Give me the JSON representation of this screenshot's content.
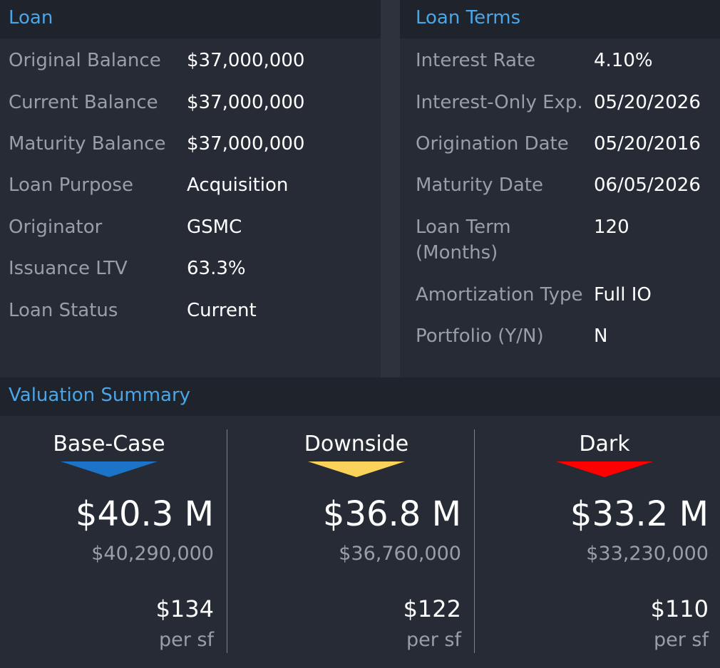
{
  "loan": {
    "title": "Loan",
    "rows": [
      {
        "label": "Original Balance",
        "value": "$37,000,000"
      },
      {
        "label": "Current Balance",
        "value": "$37,000,000"
      },
      {
        "label": "Maturity Balance",
        "value": "$37,000,000"
      },
      {
        "label": "Loan Purpose",
        "value": "Acquisition"
      },
      {
        "label": "Originator",
        "value": "GSMC"
      },
      {
        "label": "Issuance LTV",
        "value": "63.3%"
      },
      {
        "label": "Loan Status",
        "value": "Current"
      }
    ]
  },
  "terms": {
    "title": "Loan Terms",
    "rows": [
      {
        "label": "Interest Rate",
        "value": "4.10%"
      },
      {
        "label": "Interest-Only Exp.",
        "value": "05/20/2026"
      },
      {
        "label": "Origination Date",
        "value": "05/20/2016"
      },
      {
        "label": "Maturity Date",
        "value": "06/05/2026"
      },
      {
        "label": "Loan Term",
        "label2": "(Months)",
        "value": "120"
      },
      {
        "label": "Amortization Type",
        "value": "Full IO"
      },
      {
        "label": "Portfolio (Y/N)",
        "value": "N"
      }
    ]
  },
  "valuation": {
    "title": "Valuation Summary",
    "scenarios": [
      {
        "name": "Base-Case",
        "color": "#1c74c8",
        "value_short": "$40.3 M",
        "value_exact": "$40,290,000",
        "per_sf": "$134",
        "per_sf_unit": "per sf"
      },
      {
        "name": "Downside",
        "color": "#fcd35a",
        "value_short": "$36.8 M",
        "value_exact": "$36,760,000",
        "per_sf": "$122",
        "per_sf_unit": "per sf"
      },
      {
        "name": "Dark",
        "color": "#ff0000",
        "value_short": "$33.2 M",
        "value_exact": "$33,230,000",
        "per_sf": "$110",
        "per_sf_unit": "per sf"
      }
    ]
  }
}
